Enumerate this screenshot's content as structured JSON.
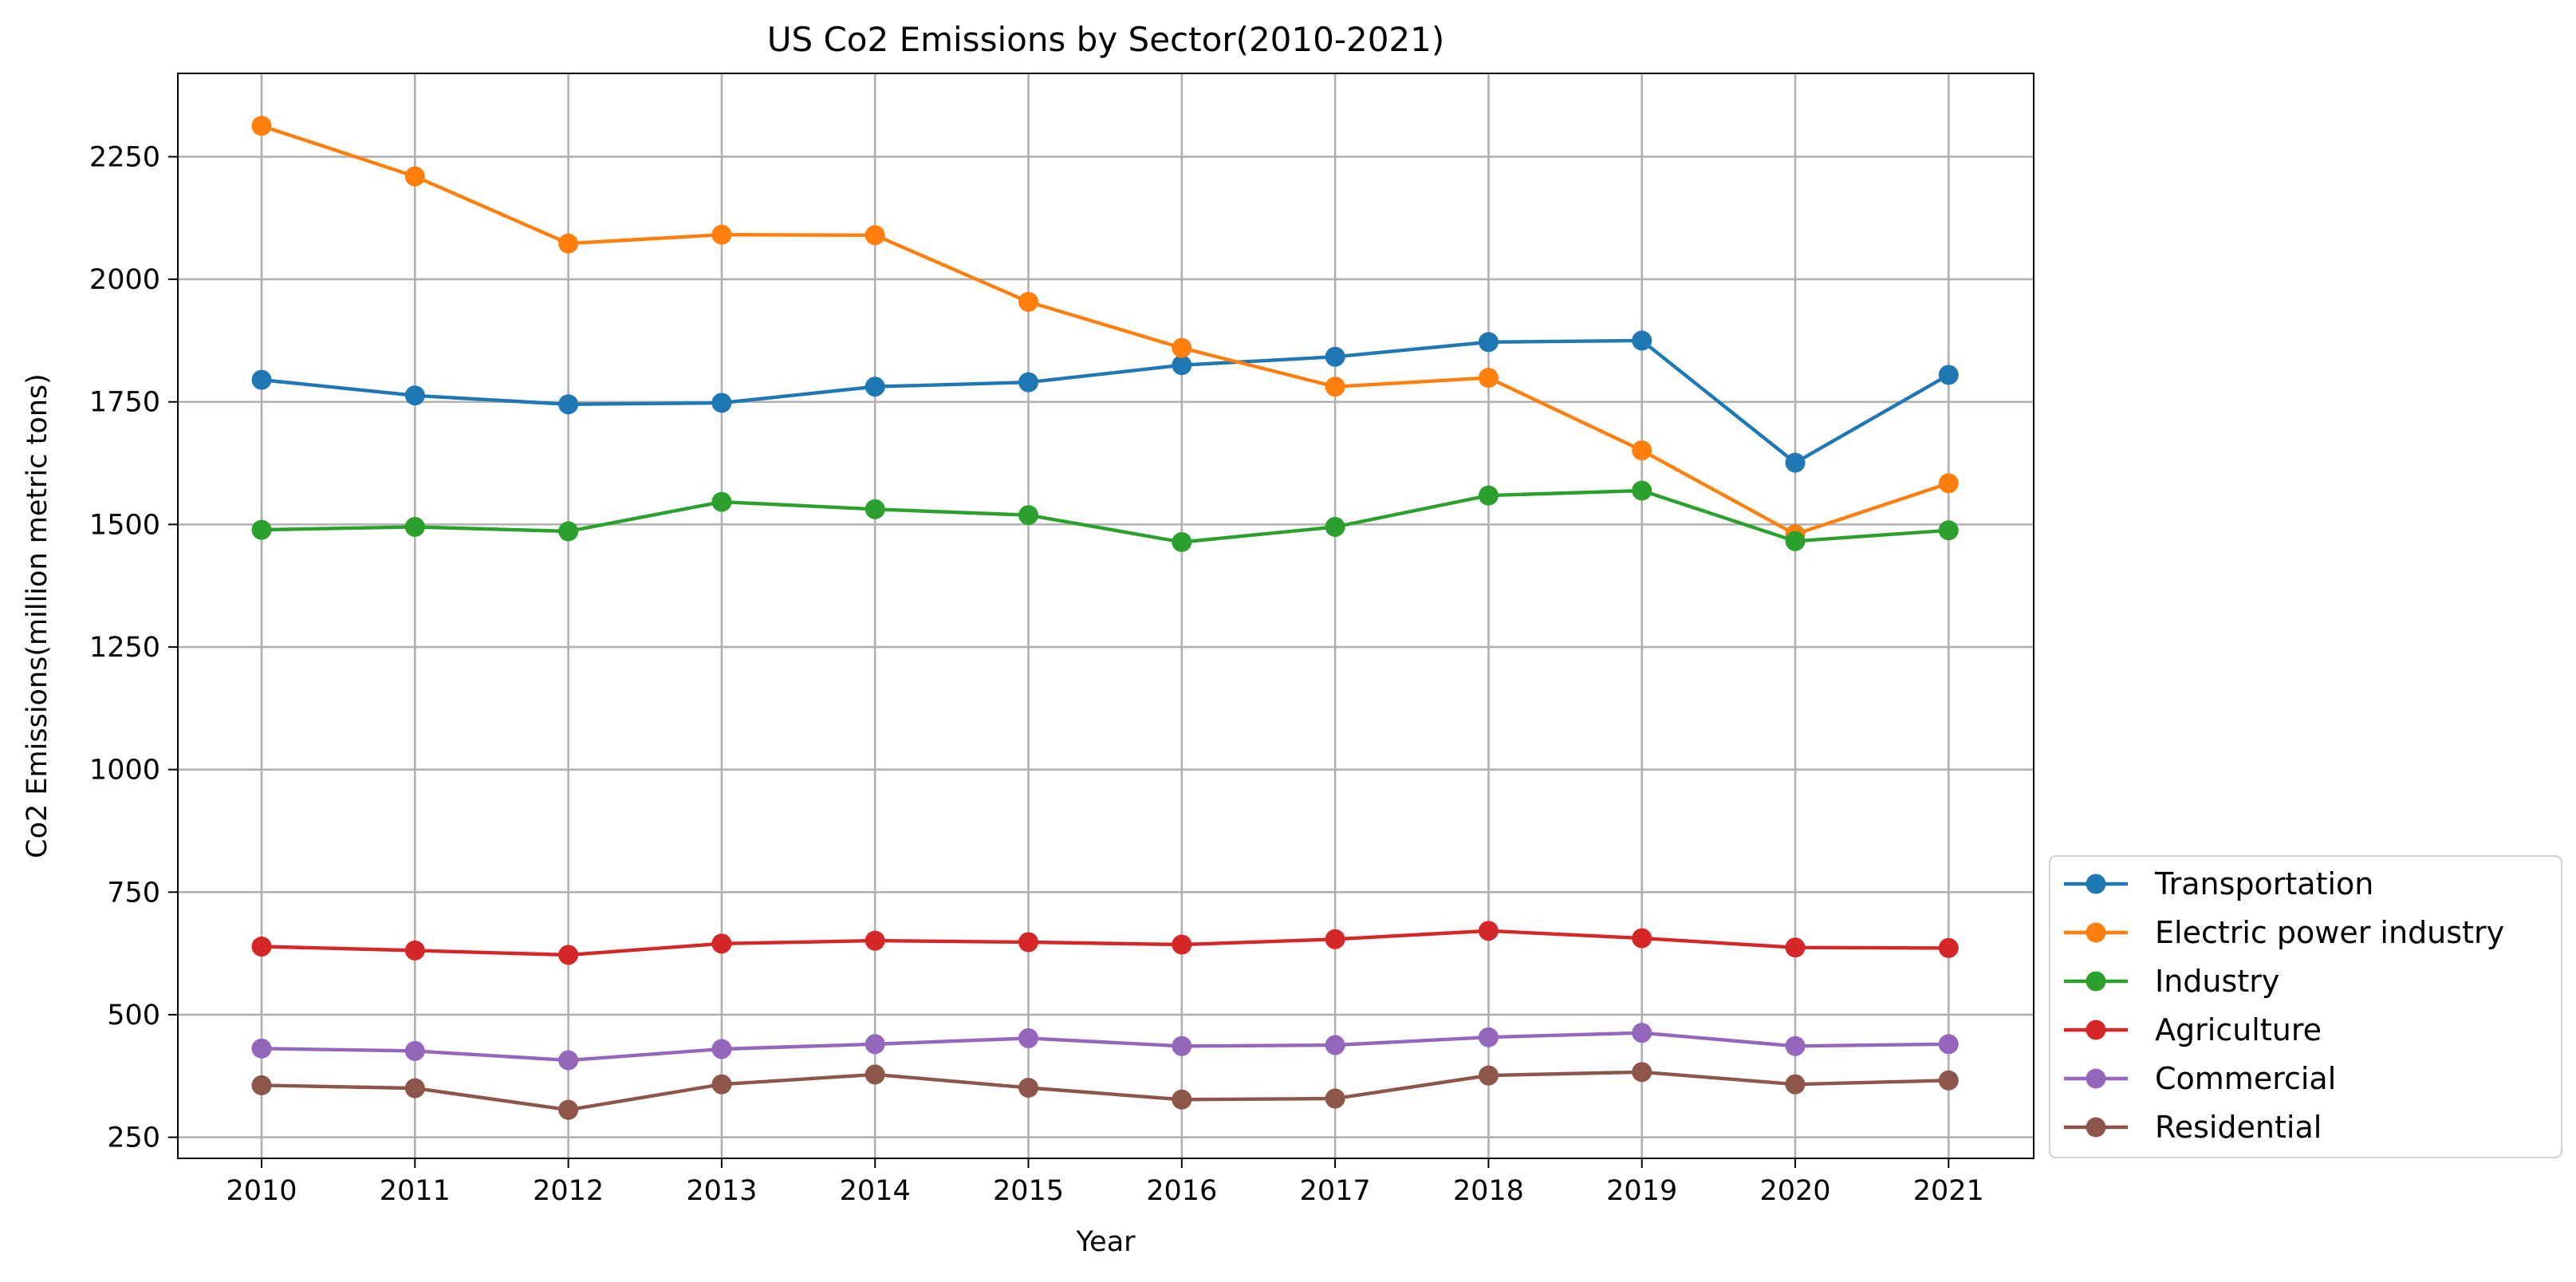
{
  "chart_data": {
    "type": "line",
    "title": "US Co2 Emissions by Sector(2010-2021)",
    "xlabel": "Year",
    "ylabel": "Co2 Emissions(million metric tons)",
    "x": [
      "2010",
      "2011",
      "2012",
      "2013",
      "2014",
      "2015",
      "2016",
      "2017",
      "2018",
      "2019",
      "2020",
      "2021"
    ],
    "ylim": [
      207,
      2420
    ],
    "yticks": [
      250,
      500,
      750,
      1000,
      1250,
      1500,
      1750,
      2000,
      2250
    ],
    "grid": true,
    "legend_position": "lower-right-outside",
    "marker": "circle",
    "series": [
      {
        "name": "Transportation",
        "color": "#1f77b4",
        "values": [
          1795,
          1763,
          1745,
          1748,
          1781,
          1790,
          1825,
          1842,
          1872,
          1875,
          1626,
          1805
        ]
      },
      {
        "name": "Electric power industry",
        "color": "#ff7f0e",
        "values": [
          2313,
          2210,
          2073,
          2091,
          2090,
          1954,
          1860,
          1781,
          1799,
          1651,
          1480,
          1584
        ]
      },
      {
        "name": "Industry",
        "color": "#2ca02c",
        "values": [
          1489,
          1495,
          1486,
          1546,
          1531,
          1519,
          1464,
          1495,
          1559,
          1569,
          1466,
          1488
        ]
      },
      {
        "name": "Agriculture",
        "color": "#d62728",
        "values": [
          639,
          631,
          622,
          645,
          651,
          648,
          643,
          654,
          671,
          656,
          637,
          636
        ]
      },
      {
        "name": "Commercial",
        "color": "#9467bd",
        "values": [
          431,
          426,
          407,
          430,
          440,
          452,
          436,
          438,
          454,
          463,
          436,
          440
        ]
      },
      {
        "name": "Residential",
        "color": "#8c564b",
        "values": [
          356,
          350,
          306,
          358,
          378,
          351,
          327,
          329,
          376,
          383,
          358,
          366
        ]
      }
    ]
  }
}
